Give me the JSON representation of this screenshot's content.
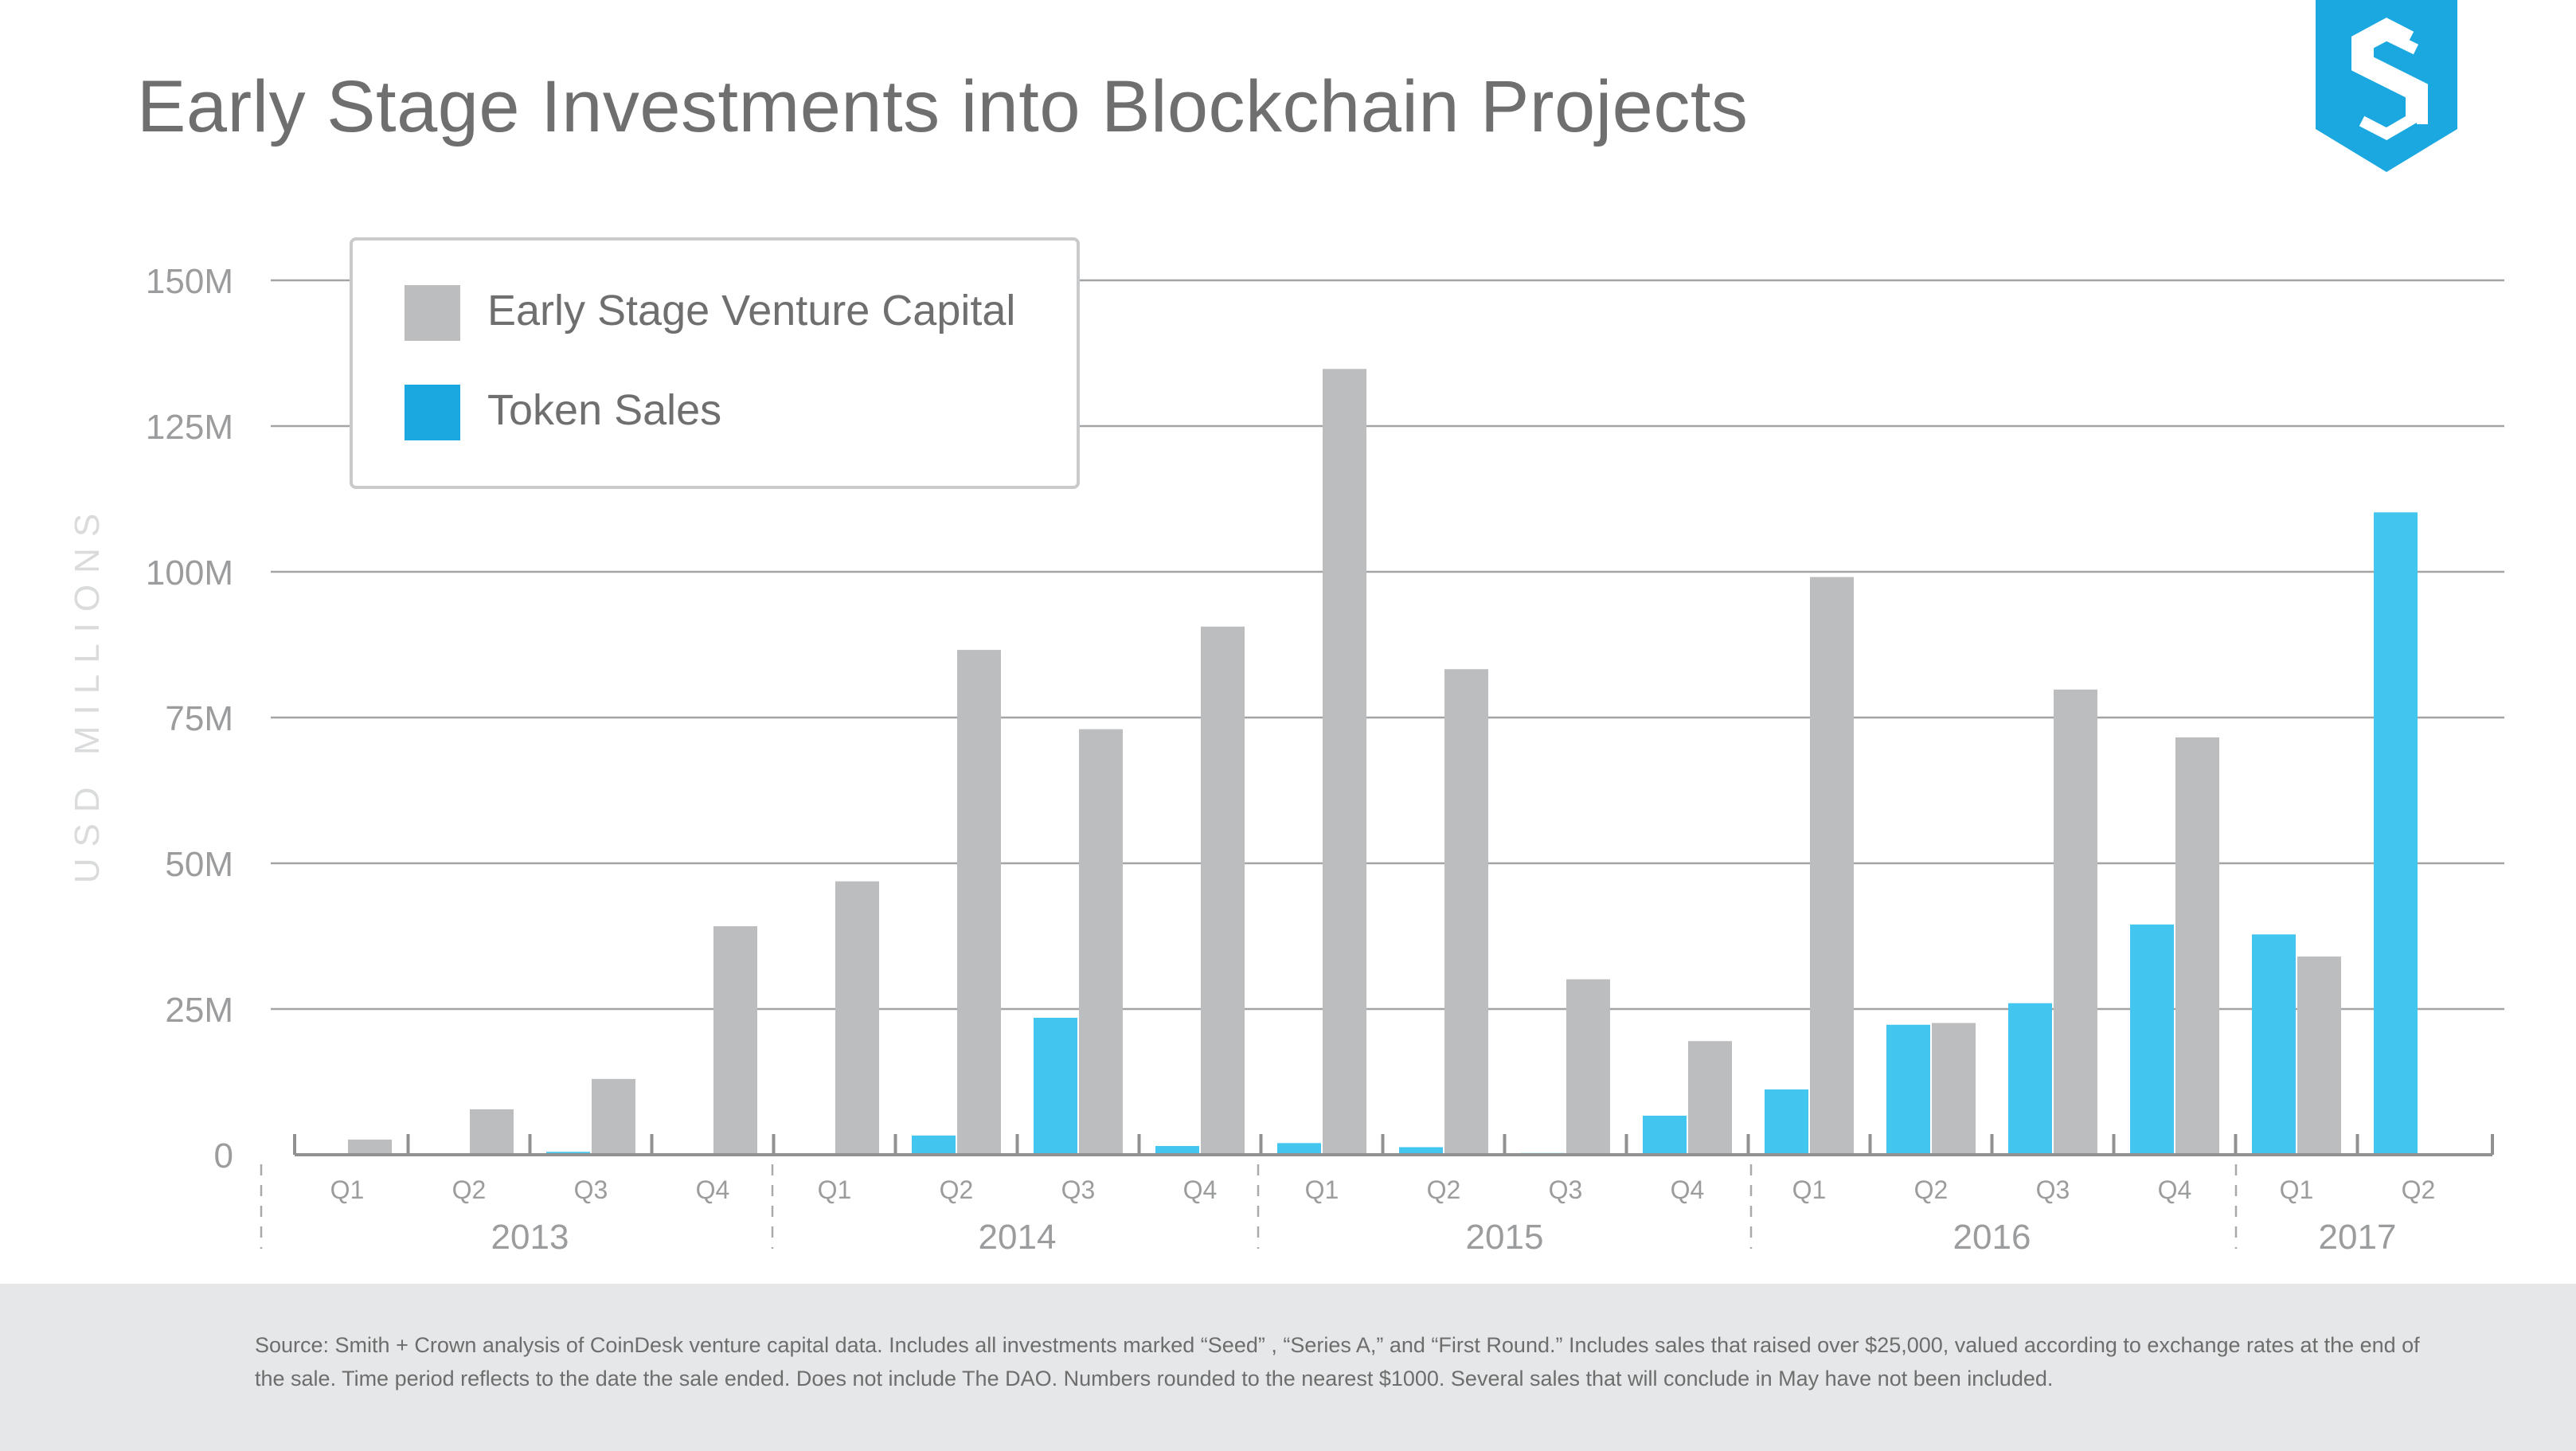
{
  "header": {
    "title": "Early Stage Investments into Blockchain Projects",
    "logo": {
      "icon": "smith-crown-logo-icon",
      "color": "#1ba7e0"
    }
  },
  "chart_data": {
    "type": "bar",
    "title": "Early Stage Investments into Blockchain Projects",
    "xlabel": "",
    "ylabel": "USD MILLIONS",
    "ylim": [
      0,
      150
    ],
    "yticks": [
      {
        "value": 0,
        "label": "0"
      },
      {
        "value": 25,
        "label": "25M"
      },
      {
        "value": 50,
        "label": "50M"
      },
      {
        "value": 75,
        "label": "75M"
      },
      {
        "value": 100,
        "label": "100M"
      },
      {
        "value": 125,
        "label": "125M"
      },
      {
        "value": 150,
        "label": "150M"
      }
    ],
    "grid": true,
    "legend_position": "top-left",
    "categories": [
      "Q1",
      "Q2",
      "Q3",
      "Q4",
      "Q1",
      "Q2",
      "Q3",
      "Q4",
      "Q1",
      "Q2",
      "Q3",
      "Q4",
      "Q1",
      "Q2",
      "Q3",
      "Q4",
      "Q1",
      "Q2"
    ],
    "years": [
      {
        "label": "2013",
        "quarters": 4
      },
      {
        "label": "2014",
        "quarters": 4
      },
      {
        "label": "2015",
        "quarters": 4
      },
      {
        "label": "2016",
        "quarters": 4
      },
      {
        "label": "2017",
        "quarters": 2
      }
    ],
    "series": [
      {
        "name": "Token Sales",
        "color": "#42c6ef",
        "legend_color": "#1ba7e0",
        "values": [
          0,
          0,
          0.5,
          0,
          0,
          3.3,
          23.5,
          1.5,
          2,
          1.3,
          0.3,
          6.7,
          11.2,
          22.3,
          26,
          39.5,
          37.8,
          110.2
        ]
      },
      {
        "name": "Early Stage Venture Capital",
        "color": "#bcbdbf",
        "legend_color": "#bcbdbf",
        "values": [
          2.6,
          7.8,
          13,
          39.2,
          46.9,
          86.6,
          73,
          90.6,
          134.8,
          83.3,
          30.1,
          19.5,
          99.1,
          22.6,
          79.8,
          71.6,
          34,
          0
        ]
      }
    ]
  },
  "footer": {
    "source_note": "Source: Smith + Crown analysis of CoinDesk venture capital data. Includes all investments marked “Seed” , “Series A,” and “First Round.”  Includes sales that raised over $25,000, valued according to exchange rates at the end of the sale. Time period reflects to the date the sale ended. Does not include The DAO. Numbers rounded to the nearest $1000. Several sales that will conclude in May have not been included."
  }
}
